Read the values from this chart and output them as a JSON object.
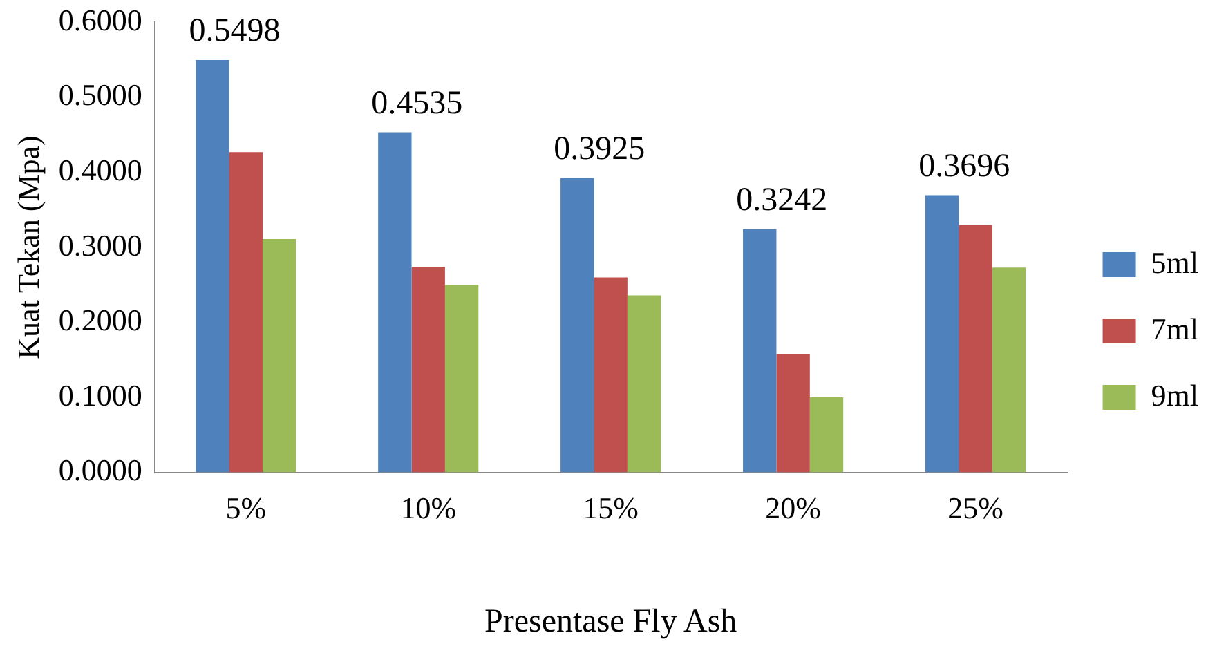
{
  "chart_data": {
    "type": "bar",
    "xlabel": "Presentase Fly Ash",
    "ylabel": "Kuat Tekan (Mpa)",
    "categories": [
      "5%",
      "10%",
      "15%",
      "20%",
      "25%"
    ],
    "series": [
      {
        "name": "5ml",
        "color": "#4f81bd",
        "values": [
          0.5498,
          0.4535,
          0.3925,
          0.3242,
          0.3696
        ],
        "value_labels": [
          "0.5498",
          "0.4535",
          "0.3925",
          "0.3242",
          "0.3696"
        ]
      },
      {
        "name": "7ml",
        "color": "#c0504d",
        "values": [
          0.427,
          0.274,
          0.26,
          0.158,
          0.33
        ]
      },
      {
        "name": "9ml",
        "color": "#9bbb59",
        "values": [
          0.311,
          0.25,
          0.236,
          0.1,
          0.273
        ]
      }
    ],
    "ylim": [
      0,
      0.6
    ],
    "yticks": [
      {
        "value": 0,
        "label": "0.0000"
      },
      {
        "value": 0.1,
        "label": "0.1000"
      },
      {
        "value": 0.2,
        "label": "0.2000"
      },
      {
        "value": 0.3,
        "label": "0.3000"
      },
      {
        "value": 0.4,
        "label": "0.4000"
      },
      {
        "value": 0.5,
        "label": "0.5000"
      },
      {
        "value": 0.6,
        "label": "0.6000"
      }
    ],
    "grid": false,
    "legend": "right"
  }
}
